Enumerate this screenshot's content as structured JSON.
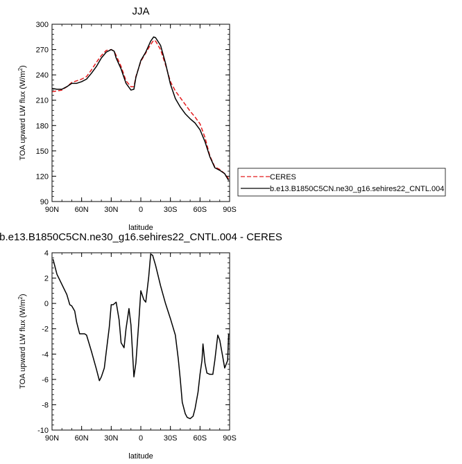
{
  "chart_data": [
    {
      "type": "line",
      "title": "JJA",
      "xlabel": "latitude",
      "ylabel": "TOA upward LW flux (W/m²)",
      "xlim": [
        90,
        -90
      ],
      "ylim": [
        90,
        300
      ],
      "xticks": [
        90,
        60,
        30,
        0,
        -30,
        -60,
        -90
      ],
      "xticklabels": [
        "90N",
        "60N",
        "30N",
        "0",
        "30S",
        "60S",
        "90S"
      ],
      "yticks": [
        90,
        120,
        150,
        180,
        210,
        240,
        270,
        300
      ],
      "yticklabels": [
        "90",
        "120",
        "150",
        "180",
        "210",
        "240",
        "270",
        "300"
      ],
      "legend_position": "right",
      "series": [
        {
          "name": "CERES",
          "color": "#e41a1c",
          "style": "dashed",
          "x": [
            90,
            85,
            80,
            75,
            70,
            65,
            60,
            55,
            50,
            45,
            40,
            35,
            30,
            27,
            25,
            20,
            15,
            10,
            7,
            5,
            0,
            -5,
            -10,
            -13,
            -15,
            -20,
            -25,
            -30,
            -35,
            -40,
            -45,
            -50,
            -55,
            -60,
            -65,
            -70,
            -75,
            -80,
            -85,
            -89
          ],
          "y": [
            220,
            221,
            222,
            226,
            231,
            233,
            235,
            238,
            246,
            255,
            263,
            269,
            270,
            268,
            263,
            250,
            233,
            226,
            226,
            238,
            256,
            266,
            276,
            281,
            280,
            270,
            252,
            232,
            221,
            213,
            205,
            197,
            190,
            182,
            166,
            144,
            131,
            128,
            123,
            117
          ]
        },
        {
          "name": "b.e13.B1850C5CN.ne30_g16.sehires22_CNTL.004",
          "color": "#000000",
          "style": "solid",
          "x": [
            90,
            85,
            80,
            75,
            70,
            65,
            60,
            55,
            50,
            45,
            40,
            35,
            30,
            27,
            25,
            20,
            15,
            10,
            7,
            5,
            0,
            -5,
            -10,
            -13,
            -15,
            -20,
            -25,
            -30,
            -35,
            -40,
            -45,
            -50,
            -55,
            -60,
            -65,
            -70,
            -75,
            -80,
            -85,
            -89
          ],
          "y": [
            224,
            223,
            223,
            226,
            230,
            230,
            232,
            235,
            242,
            250,
            260,
            267,
            270,
            268,
            260,
            247,
            230,
            222,
            223,
            237,
            257,
            267,
            280,
            285,
            284,
            275,
            254,
            229,
            212,
            202,
            194,
            188,
            183,
            175,
            161,
            143,
            130,
            127,
            123,
            115
          ]
        }
      ]
    },
    {
      "type": "line",
      "title": "b.e13.B1850C5CN.ne30_g16.sehires22_CNTL.004 - CERES",
      "xlabel": "latitude",
      "ylabel": "TOA upward LW flux (W/m²)",
      "xlim": [
        90,
        -90
      ],
      "ylim": [
        -10,
        4
      ],
      "xticks": [
        90,
        60,
        30,
        0,
        -30,
        -60,
        -90
      ],
      "xticklabels": [
        "90N",
        "60N",
        "30N",
        "0",
        "30S",
        "60S",
        "90S"
      ],
      "yticks": [
        -10,
        -8,
        -6,
        -4,
        -2,
        0,
        2,
        4
      ],
      "yticklabels": [
        "-10",
        "-8",
        "-6",
        "-4",
        "-2",
        "0",
        "2",
        "4"
      ],
      "series": [
        {
          "name": "",
          "color": "#000000",
          "style": "solid",
          "x": [
            89,
            85,
            80,
            75,
            72,
            70,
            67,
            65,
            62,
            60,
            57,
            55,
            50,
            45,
            42,
            40,
            37,
            35,
            32,
            30,
            28,
            25,
            22,
            20,
            17,
            15,
            12,
            10,
            7,
            5,
            2,
            0,
            -3,
            -5,
            -8,
            -10,
            -12,
            -15,
            -20,
            -25,
            -30,
            -35,
            -38,
            -40,
            -42,
            -45,
            -47,
            -50,
            -53,
            -55,
            -58,
            -60,
            -62,
            -63,
            -65,
            -67,
            -70,
            -73,
            -75,
            -78,
            -80,
            -83,
            -85,
            -88,
            -89
          ],
          "y": [
            3.5,
            2.3,
            1.5,
            0.7,
            -0.1,
            -0.2,
            -0.6,
            -1.5,
            -2.4,
            -2.4,
            -2.4,
            -2.5,
            -3.8,
            -5.2,
            -6.1,
            -5.8,
            -5.1,
            -3.8,
            -1.9,
            -0.1,
            -0.1,
            0.1,
            -1.3,
            -3.1,
            -3.5,
            -2.0,
            -0.4,
            -1.7,
            -5.8,
            -4.7,
            -1.4,
            1.0,
            0.3,
            0.1,
            2.1,
            3.9,
            3.8,
            3.0,
            1.4,
            0.0,
            -1.2,
            -2.5,
            -4.4,
            -6.0,
            -7.8,
            -8.7,
            -9.0,
            -9.1,
            -8.9,
            -8.3,
            -7.0,
            -5.6,
            -4.5,
            -3.2,
            -4.7,
            -5.5,
            -5.6,
            -5.6,
            -4.5,
            -2.5,
            -2.9,
            -4.2,
            -5.1,
            -4.5,
            -2.4
          ]
        }
      ]
    }
  ]
}
